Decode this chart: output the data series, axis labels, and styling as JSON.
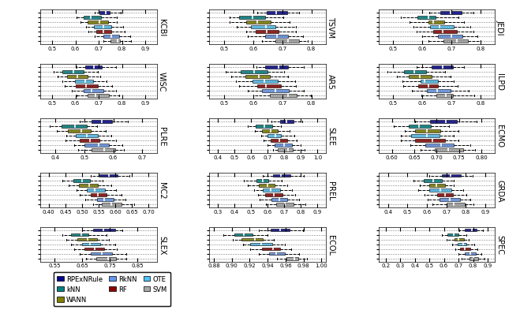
{
  "panels": [
    {
      "name": "KCBI",
      "xlim": [
        0.45,
        0.95
      ],
      "xticks": [
        0.5,
        0.6,
        0.7,
        0.8,
        0.9
      ]
    },
    {
      "name": "TSVM",
      "xlim": [
        0.45,
        0.85
      ],
      "xticks": [
        0.5,
        0.6,
        0.7,
        0.8
      ]
    },
    {
      "name": "JEDI",
      "xlim": [
        0.45,
        0.85
      ],
      "xticks": [
        0.5,
        0.6,
        0.7,
        0.8
      ]
    },
    {
      "name": "WISC",
      "xlim": [
        0.45,
        0.95
      ],
      "xticks": [
        0.5,
        0.6,
        0.7,
        0.8,
        0.9
      ]
    },
    {
      "name": "AR5",
      "xlim": [
        0.45,
        0.85
      ],
      "xticks": [
        0.5,
        0.6,
        0.7,
        0.8
      ]
    },
    {
      "name": "ILPD",
      "xlim": [
        0.45,
        0.85
      ],
      "xticks": [
        0.5,
        0.6,
        0.7,
        0.8
      ]
    },
    {
      "name": "PLRE",
      "xlim": [
        0.35,
        0.75
      ],
      "xticks": [
        0.4,
        0.5,
        0.6,
        0.7
      ]
    },
    {
      "name": "SLEE",
      "xlim": [
        0.35,
        1.05
      ],
      "xticks": [
        0.4,
        0.5,
        0.6,
        0.7,
        0.8,
        0.9,
        1.0
      ]
    },
    {
      "name": "ECMO",
      "xlim": [
        0.57,
        0.83
      ],
      "xticks": [
        0.6,
        0.65,
        0.7,
        0.75,
        0.8
      ]
    },
    {
      "name": "MC2",
      "xlim": [
        0.375,
        0.725
      ],
      "xticks": [
        0.4,
        0.45,
        0.5,
        0.55,
        0.6,
        0.65,
        0.7
      ]
    },
    {
      "name": "PREL",
      "xlim": [
        0.25,
        0.95
      ],
      "xticks": [
        0.3,
        0.4,
        0.5,
        0.6,
        0.7,
        0.8,
        0.9
      ]
    },
    {
      "name": "GRDA",
      "xlim": [
        0.35,
        0.95
      ],
      "xticks": [
        0.4,
        0.5,
        0.6,
        0.7,
        0.8,
        0.9
      ]
    },
    {
      "name": "SLEX",
      "xlim": [
        0.5,
        0.92
      ],
      "xticks": [
        0.55,
        0.65,
        0.75,
        0.85
      ]
    },
    {
      "name": "ECOL",
      "xlim": [
        0.875,
        1.005
      ],
      "xticks": [
        0.88,
        0.9,
        0.92,
        0.94,
        0.96,
        0.98,
        1.0
      ]
    },
    {
      "name": "SPEC",
      "xlim": [
        0.15,
        0.95
      ],
      "xticks": [
        0.2,
        0.3,
        0.4,
        0.5,
        0.6,
        0.7,
        0.8,
        0.9
      ]
    }
  ],
  "methods": [
    "RPExNRule",
    "kNN",
    "WANN",
    "RkNN",
    "RF",
    "OTE",
    "SVM"
  ],
  "colors": {
    "RPExNRule": "#00008B",
    "kNN": "#008080",
    "WANN": "#808000",
    "RkNN": "#6495ED",
    "RF": "#8B0000",
    "OTE": "#4FC3F7",
    "SVM": "#A9A9A9"
  },
  "boxplot_data": {
    "KCBI": {
      "SVM": [
        0.72,
        0.75,
        0.78,
        0.8,
        0.85
      ],
      "RkNN": [
        0.68,
        0.72,
        0.75,
        0.79,
        0.84
      ],
      "RF": [
        0.65,
        0.69,
        0.72,
        0.76,
        0.82
      ],
      "OTE": [
        0.64,
        0.68,
        0.72,
        0.76,
        0.81
      ],
      "WANN": [
        0.62,
        0.65,
        0.7,
        0.74,
        0.8
      ],
      "kNN": [
        0.6,
        0.63,
        0.67,
        0.72,
        0.78
      ],
      "RPExNRule": [
        0.68,
        0.7,
        0.73,
        0.75,
        0.8
      ]
    },
    "TSVM": {
      "SVM": [
        0.62,
        0.67,
        0.72,
        0.76,
        0.8
      ],
      "RkNN": [
        0.58,
        0.63,
        0.68,
        0.72,
        0.78
      ],
      "RF": [
        0.55,
        0.6,
        0.65,
        0.7,
        0.76
      ],
      "OTE": [
        0.54,
        0.59,
        0.64,
        0.69,
        0.75
      ],
      "WANN": [
        0.52,
        0.57,
        0.62,
        0.67,
        0.73
      ],
      "kNN": [
        0.5,
        0.55,
        0.6,
        0.65,
        0.71
      ],
      "RPExNRule": [
        0.6,
        0.64,
        0.68,
        0.72,
        0.77
      ]
    },
    "JEDI": {
      "SVM": [
        0.62,
        0.67,
        0.72,
        0.76,
        0.8
      ],
      "RkNN": [
        0.6,
        0.65,
        0.7,
        0.74,
        0.79
      ],
      "RF": [
        0.58,
        0.63,
        0.67,
        0.72,
        0.78
      ],
      "OTE": [
        0.57,
        0.62,
        0.66,
        0.71,
        0.77
      ],
      "WANN": [
        0.55,
        0.6,
        0.64,
        0.69,
        0.75
      ],
      "kNN": [
        0.52,
        0.57,
        0.62,
        0.67,
        0.73
      ],
      "RPExNRule": [
        0.62,
        0.66,
        0.7,
        0.74,
        0.79
      ]
    },
    "WISC": {
      "SVM": [
        0.6,
        0.65,
        0.7,
        0.75,
        0.8
      ],
      "RkNN": [
        0.58,
        0.63,
        0.67,
        0.72,
        0.78
      ],
      "RF": [
        0.55,
        0.6,
        0.65,
        0.7,
        0.76
      ],
      "OTE": [
        0.54,
        0.59,
        0.64,
        0.68,
        0.74
      ],
      "WANN": [
        0.52,
        0.56,
        0.61,
        0.66,
        0.72
      ],
      "kNN": [
        0.5,
        0.54,
        0.59,
        0.64,
        0.7
      ],
      "RPExNRule": [
        0.6,
        0.64,
        0.68,
        0.72,
        0.78
      ]
    },
    "AR5": {
      "SVM": [
        0.6,
        0.65,
        0.72,
        0.76,
        0.8
      ],
      "RkNN": [
        0.58,
        0.63,
        0.68,
        0.73,
        0.78
      ],
      "RF": [
        0.55,
        0.6,
        0.65,
        0.7,
        0.76
      ],
      "OTE": [
        0.54,
        0.59,
        0.64,
        0.69,
        0.75
      ],
      "WANN": [
        0.52,
        0.57,
        0.62,
        0.67,
        0.73
      ],
      "kNN": [
        0.5,
        0.55,
        0.6,
        0.65,
        0.71
      ],
      "RPExNRule": [
        0.6,
        0.64,
        0.69,
        0.73,
        0.78
      ]
    },
    "ILPD": {
      "SVM": [
        0.58,
        0.63,
        0.68,
        0.72,
        0.78
      ],
      "RkNN": [
        0.56,
        0.61,
        0.65,
        0.7,
        0.76
      ],
      "RF": [
        0.53,
        0.58,
        0.62,
        0.67,
        0.73
      ],
      "OTE": [
        0.52,
        0.57,
        0.61,
        0.66,
        0.72
      ],
      "WANN": [
        0.5,
        0.55,
        0.59,
        0.64,
        0.7
      ],
      "kNN": [
        0.48,
        0.53,
        0.57,
        0.62,
        0.68
      ],
      "RPExNRule": [
        0.58,
        0.62,
        0.67,
        0.71,
        0.76
      ]
    },
    "PLRE": {
      "SVM": [
        0.48,
        0.52,
        0.57,
        0.61,
        0.66
      ],
      "RkNN": [
        0.46,
        0.5,
        0.55,
        0.59,
        0.64
      ],
      "RF": [
        0.43,
        0.47,
        0.52,
        0.56,
        0.61
      ],
      "OTE": [
        0.42,
        0.46,
        0.51,
        0.55,
        0.6
      ],
      "WANN": [
        0.4,
        0.44,
        0.49,
        0.53,
        0.58
      ],
      "kNN": [
        0.38,
        0.42,
        0.47,
        0.51,
        0.56
      ],
      "RPExNRule": [
        0.48,
        0.52,
        0.56,
        0.6,
        0.65
      ]
    },
    "SLEE": {
      "SVM": [
        0.72,
        0.76,
        0.82,
        0.87,
        0.93
      ],
      "RkNN": [
        0.7,
        0.74,
        0.8,
        0.85,
        0.91
      ],
      "RF": [
        0.67,
        0.71,
        0.77,
        0.82,
        0.88
      ],
      "OTE": [
        0.65,
        0.69,
        0.75,
        0.8,
        0.86
      ],
      "WANN": [
        0.62,
        0.66,
        0.72,
        0.77,
        0.83
      ],
      "kNN": [
        0.58,
        0.62,
        0.68,
        0.73,
        0.79
      ],
      "RPExNRule": [
        0.72,
        0.76,
        0.81,
        0.86,
        0.92
      ]
    },
    "ECMO": {
      "SVM": [
        0.66,
        0.69,
        0.73,
        0.76,
        0.8
      ],
      "RkNN": [
        0.64,
        0.67,
        0.71,
        0.74,
        0.78
      ],
      "RF": [
        0.62,
        0.65,
        0.69,
        0.72,
        0.76
      ],
      "OTE": [
        0.61,
        0.64,
        0.68,
        0.71,
        0.75
      ],
      "WANN": [
        0.62,
        0.65,
        0.68,
        0.71,
        0.75
      ],
      "kNN": [
        0.6,
        0.63,
        0.66,
        0.69,
        0.73
      ],
      "RPExNRule": [
        0.65,
        0.68,
        0.72,
        0.75,
        0.79
      ]
    },
    "MC2": {
      "SVM": [
        0.53,
        0.56,
        0.59,
        0.62,
        0.66
      ],
      "RkNN": [
        0.51,
        0.54,
        0.57,
        0.6,
        0.64
      ],
      "RF": [
        0.49,
        0.52,
        0.55,
        0.58,
        0.62
      ],
      "OTE": [
        0.48,
        0.51,
        0.54,
        0.57,
        0.61
      ],
      "WANN": [
        0.46,
        0.49,
        0.52,
        0.55,
        0.59
      ],
      "kNN": [
        0.44,
        0.47,
        0.5,
        0.53,
        0.57
      ],
      "RPExNRule": [
        0.52,
        0.55,
        0.58,
        0.61,
        0.65
      ]
    },
    "PREL": {
      "SVM": [
        0.58,
        0.64,
        0.7,
        0.76,
        0.83
      ],
      "RkNN": [
        0.55,
        0.61,
        0.67,
        0.73,
        0.8
      ],
      "RF": [
        0.52,
        0.58,
        0.64,
        0.7,
        0.77
      ],
      "OTE": [
        0.51,
        0.57,
        0.62,
        0.68,
        0.75
      ],
      "WANN": [
        0.48,
        0.54,
        0.6,
        0.65,
        0.72
      ],
      "kNN": [
        0.45,
        0.51,
        0.57,
        0.62,
        0.69
      ],
      "RPExNRule": [
        0.57,
        0.63,
        0.69,
        0.75,
        0.82
      ]
    },
    "GRDA": {
      "SVM": [
        0.62,
        0.68,
        0.74,
        0.8,
        0.86
      ],
      "RkNN": [
        0.6,
        0.66,
        0.72,
        0.78,
        0.84
      ],
      "RF": [
        0.57,
        0.63,
        0.69,
        0.75,
        0.81
      ],
      "OTE": [
        0.55,
        0.61,
        0.67,
        0.73,
        0.79
      ],
      "WANN": [
        0.55,
        0.6,
        0.65,
        0.7,
        0.76
      ],
      "kNN": [
        0.52,
        0.58,
        0.63,
        0.68,
        0.74
      ],
      "RPExNRule": [
        0.6,
        0.66,
        0.72,
        0.78,
        0.84
      ]
    },
    "SLEX": {
      "SVM": [
        0.66,
        0.7,
        0.74,
        0.78,
        0.83
      ],
      "RkNN": [
        0.64,
        0.68,
        0.72,
        0.76,
        0.81
      ],
      "RF": [
        0.62,
        0.65,
        0.7,
        0.74,
        0.79
      ],
      "OTE": [
        0.61,
        0.64,
        0.68,
        0.72,
        0.77
      ],
      "WANN": [
        0.59,
        0.63,
        0.67,
        0.71,
        0.76
      ],
      "kNN": [
        0.57,
        0.61,
        0.65,
        0.69,
        0.74
      ],
      "RPExNRule": [
        0.65,
        0.69,
        0.73,
        0.77,
        0.82
      ]
    },
    "ECOL": {
      "SVM": [
        0.95,
        0.96,
        0.97,
        0.975,
        0.985
      ],
      "RkNN": [
        0.93,
        0.94,
        0.95,
        0.96,
        0.975
      ],
      "RF": [
        0.92,
        0.93,
        0.945,
        0.955,
        0.97
      ],
      "OTE": [
        0.91,
        0.92,
        0.935,
        0.945,
        0.96
      ],
      "WANN": [
        0.9,
        0.91,
        0.925,
        0.935,
        0.95
      ],
      "kNN": [
        0.89,
        0.9,
        0.915,
        0.925,
        0.94
      ],
      "RPExNRule": [
        0.93,
        0.94,
        0.955,
        0.965,
        0.98
      ]
    },
    "SPEC": {
      "SVM": [
        0.72,
        0.76,
        0.8,
        0.84,
        0.88
      ],
      "RkNN": [
        0.7,
        0.74,
        0.78,
        0.82,
        0.86
      ],
      "RF": [
        0.67,
        0.71,
        0.75,
        0.79,
        0.83
      ],
      "OTE": [
        0.65,
        0.69,
        0.73,
        0.77,
        0.81
      ],
      "WANN": [
        0.62,
        0.66,
        0.7,
        0.74,
        0.78
      ],
      "kNN": [
        0.58,
        0.62,
        0.67,
        0.71,
        0.76
      ],
      "RPExNRule": [
        0.7,
        0.74,
        0.79,
        0.83,
        0.87
      ]
    }
  },
  "method_order": [
    "SVM",
    "RkNN",
    "RF",
    "OTE",
    "WANN",
    "kNN",
    "RPExNRule"
  ],
  "legend_labels": {
    "RPExNRule": "RPExNRule",
    "kNN": "kNN",
    "WANN": "WANN",
    "RkNN": "RkNN",
    "RF": "RF",
    "OTE": "OTE",
    "SVM": "SVM"
  }
}
